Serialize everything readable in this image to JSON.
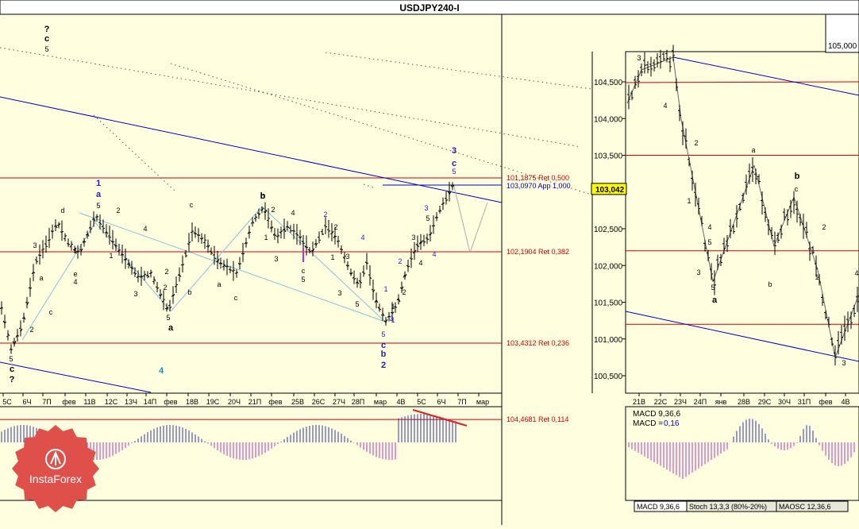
{
  "window_title": "USDJPY240-I",
  "colors": {
    "background": "#ffffe0",
    "bars": "#000000",
    "trend": "#0000c0",
    "fib": "#cc0000",
    "wave_blue": "#2020c0",
    "macd_pos": "#3030c0",
    "macd_neg": "#c030c0",
    "corr": "#87c0d8",
    "annot_red": "#dd2222",
    "logo": "#e0504a"
  },
  "left_chart": {
    "x_labels": [
      "5С",
      "6Ч",
      "7П",
      "фев",
      "11В",
      "12С",
      "13Ч",
      "14П",
      "фев",
      "18В",
      "19С",
      "20Ч",
      "21П",
      "фев",
      "25В",
      "26С",
      "27Ч",
      "28П",
      "мар",
      "4В",
      "5С",
      "6Ч",
      "7П",
      "мар"
    ],
    "fib_levels": [
      {
        "label": "104,4681 Ret 0,114",
        "price": 104.4681
      },
      {
        "label": "103,4312 Ret 0,236",
        "price": 103.4312
      },
      {
        "label": "102,1904 Ret 0,382",
        "price": 102.1904
      },
      {
        "label": "101,1875 Ret 0,500",
        "price": 101.1875
      }
    ],
    "projection_label": "103,0970 App 1,000",
    "wave_labels": [
      {
        "t": "?",
        "c": "k",
        "b": true
      },
      {
        "t": "c",
        "c": "k",
        "b": true
      },
      {
        "t": "5",
        "c": "k"
      },
      {
        "t": "1",
        "c": "b",
        "b": true
      },
      {
        "t": "a",
        "c": "b",
        "b": true
      },
      {
        "t": "5",
        "c": "k"
      },
      {
        "t": "2",
        "c": "k"
      },
      {
        "t": "b",
        "c": "k"
      },
      {
        "t": "d",
        "c": "k"
      },
      {
        "t": "3",
        "c": "k"
      },
      {
        "t": "a",
        "c": "k"
      },
      {
        "t": "1",
        "c": "k"
      },
      {
        "t": "2",
        "c": "k"
      },
      {
        "t": "c",
        "c": "k"
      },
      {
        "t": "e",
        "c": "k"
      },
      {
        "t": "4",
        "c": "k"
      },
      {
        "t": "1",
        "c": "k"
      },
      {
        "t": "4",
        "c": "k"
      },
      {
        "t": "3",
        "c": "k"
      },
      {
        "t": "2",
        "c": "k"
      },
      {
        "t": "5",
        "c": "k"
      },
      {
        "t": "a",
        "c": "k",
        "b": true
      },
      {
        "t": "c",
        "c": "k"
      },
      {
        "t": "b",
        "c": "k"
      },
      {
        "t": "a",
        "c": "k"
      },
      {
        "t": "c",
        "c": "k"
      },
      {
        "t": "b",
        "c": "k",
        "b": true
      },
      {
        "t": "2",
        "c": "k"
      },
      {
        "t": "4",
        "c": "k"
      },
      {
        "t": "1",
        "c": "k"
      },
      {
        "t": "3",
        "c": "k"
      },
      {
        "t": "2",
        "c": "b"
      },
      {
        "t": "2",
        "c": "k"
      },
      {
        "t": "1",
        "c": "k"
      },
      {
        "t": "3",
        "c": "k"
      },
      {
        "t": "5",
        "c": "k"
      },
      {
        "t": "1",
        "c": "b"
      },
      {
        "t": "4",
        "c": "b"
      },
      {
        "t": "c",
        "c": "k"
      },
      {
        "t": "1",
        "c": "k"
      },
      {
        "t": "3",
        "c": "k"
      },
      {
        "t": "5",
        "c": "k"
      },
      {
        "t": "3",
        "c": "b"
      },
      {
        "t": "1",
        "c": "b"
      },
      {
        "t": "2",
        "c": "k"
      },
      {
        "t": "2",
        "c": "b"
      },
      {
        "t": "3",
        "c": "k"
      },
      {
        "t": "4",
        "c": "k"
      },
      {
        "t": "5",
        "c": "k"
      },
      {
        "t": "3",
        "c": "b"
      },
      {
        "t": "4",
        "c": "b"
      },
      {
        "t": "3",
        "c": "b",
        "b": true
      },
      {
        "t": "c",
        "c": "b",
        "b": true
      },
      {
        "t": "5",
        "c": "b"
      },
      {
        "t": "5",
        "c": "b"
      },
      {
        "t": "c",
        "c": "b",
        "b": true
      },
      {
        "t": "b",
        "c": "b",
        "b": true
      },
      {
        "t": "2",
        "c": "b",
        "b": true
      },
      {
        "t": "4",
        "c": "t",
        "b": true
      },
      {
        "t": "2",
        "c": "k"
      },
      {
        "t": "5",
        "c": "k"
      },
      {
        "t": "c",
        "c": "k",
        "b": true
      },
      {
        "t": "?",
        "c": "k",
        "b": true
      }
    ]
  },
  "right_chart": {
    "price_labels": [
      "105,000",
      "104,500",
      "104,000",
      "103,500",
      "103,042",
      "102,500",
      "102,000",
      "101,500",
      "101,000",
      "100,500"
    ],
    "current_price": "103,042",
    "x_labels": [
      "21В",
      "22С",
      "23Ч",
      "24П",
      "янв",
      "28В",
      "29С",
      "30Ч",
      "31П",
      "фев",
      "4В"
    ],
    "wave_labels": [
      {
        "t": "3"
      },
      {
        "t": "4"
      },
      {
        "t": "2"
      },
      {
        "t": "1"
      },
      {
        "t": "4"
      },
      {
        "t": "5"
      },
      {
        "t": "3"
      },
      {
        "t": "5"
      },
      {
        "t": "a",
        "b": true
      },
      {
        "t": "a"
      },
      {
        "t": "b",
        "b": true
      },
      {
        "t": "c"
      },
      {
        "t": "b"
      },
      {
        "t": "2"
      },
      {
        "t": "1"
      },
      {
        "t": "3"
      },
      {
        "t": "4"
      }
    ],
    "macd_text": "MACD 9,36,6",
    "macd_value_label": "MACD =",
    "macd_value": "0,16"
  },
  "indicator_tabs": [
    "MACD 9,36,6",
    "Stoch 13,3,3 (80%-20%)",
    "MAOSC 12,36,6"
  ],
  "logo_text": "InstaForex"
}
